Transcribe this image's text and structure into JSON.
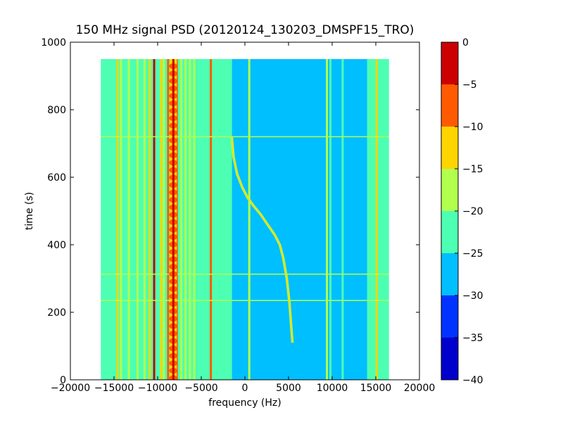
{
  "chart_data": {
    "type": "heatmap",
    "title": "150 MHz signal PSD (20120124_130203_DMSPF15_TRO)",
    "xlabel": "frequency (Hz)",
    "ylabel": "time (s)",
    "xlim": [
      -20000,
      20000
    ],
    "ylim": [
      0,
      1000
    ],
    "x_ticks": [
      -20000,
      -15000,
      -10000,
      -5000,
      0,
      5000,
      10000,
      15000,
      20000
    ],
    "x_tick_labels": [
      "−20000",
      "−15000",
      "−10000",
      "−5000",
      "0",
      "5000",
      "10000",
      "15000",
      "20000"
    ],
    "y_ticks": [
      0,
      200,
      400,
      600,
      800,
      1000
    ],
    "y_tick_labels": [
      "0",
      "200",
      "400",
      "600",
      "800",
      "1000"
    ],
    "data_extent": {
      "freq_min": -16500,
      "freq_max": 16500,
      "time_min": 0,
      "time_max": 950
    },
    "background_level": -28,
    "colorbar": {
      "levels": [
        -40,
        -35,
        -30,
        -25,
        -20,
        -15,
        -10,
        -5,
        0
      ],
      "tick_labels": [
        "−40",
        "−35",
        "−30",
        "−25",
        "−20",
        "−15",
        "−10",
        "−5",
        "0"
      ],
      "colors": [
        "#0000cc",
        "#0033ff",
        "#00bfff",
        "#4dffb2",
        "#b2ff4d",
        "#ffd500",
        "#ff5a00",
        "#cc0000"
      ]
    },
    "vertical_bands": [
      {
        "freq_from": -16500,
        "freq_to": -12500,
        "level": -23
      },
      {
        "freq_from": -12500,
        "freq_to": -5500,
        "level": -22
      },
      {
        "freq_from": -5500,
        "freq_to": -3500,
        "level": -23
      },
      {
        "freq_from": -3500,
        "freq_to": -1500,
        "level": -24
      },
      {
        "freq_from": 14000,
        "freq_to": 16500,
        "level": -23
      }
    ],
    "spectral_lines": [
      {
        "freq": -14600,
        "level": -12
      },
      {
        "freq": -14200,
        "level": -20
      },
      {
        "freq": -13300,
        "level": -18
      },
      {
        "freq": -12300,
        "level": -20
      },
      {
        "freq": -11500,
        "level": -16
      },
      {
        "freq": -10900,
        "level": -12
      },
      {
        "freq": -10400,
        "level": -3
      },
      {
        "freq": -9600,
        "level": -12
      },
      {
        "freq": -9300,
        "level": -16
      },
      {
        "freq": -8800,
        "level": -10
      },
      {
        "freq": -8300,
        "level": -6
      },
      {
        "freq": -7800,
        "level": -10
      },
      {
        "freq": -7300,
        "level": -16
      },
      {
        "freq": -6800,
        "level": -18
      },
      {
        "freq": -6300,
        "level": -18
      },
      {
        "freq": -5800,
        "level": -20
      },
      {
        "freq": -3900,
        "level": -8
      },
      {
        "freq": -3500,
        "level": -22
      },
      {
        "freq": -2600,
        "level": -22
      },
      {
        "freq": -1600,
        "level": -22
      },
      {
        "freq": 500,
        "level": -18
      },
      {
        "freq": 9400,
        "level": -18
      },
      {
        "freq": 9800,
        "level": -21
      },
      {
        "freq": 11200,
        "level": -21
      },
      {
        "freq": 14700,
        "level": -22
      },
      {
        "freq": 15100,
        "level": -14
      }
    ],
    "carrier": {
      "freq": -8200,
      "level": 0
    },
    "interference_rows": [
      {
        "time": 720,
        "level": -18
      },
      {
        "time": 313,
        "level": -18
      },
      {
        "time": 235,
        "level": -18
      }
    ],
    "doppler_trace": [
      {
        "freq": -1500,
        "time": 720
      },
      {
        "freq": -1300,
        "time": 660
      },
      {
        "freq": -900,
        "time": 610
      },
      {
        "freq": -300,
        "time": 570
      },
      {
        "freq": 300,
        "time": 540
      },
      {
        "freq": 1000,
        "time": 515
      },
      {
        "freq": 1800,
        "time": 490
      },
      {
        "freq": 2600,
        "time": 460
      },
      {
        "freq": 3400,
        "time": 430
      },
      {
        "freq": 4000,
        "time": 400
      },
      {
        "freq": 4400,
        "time": 360
      },
      {
        "freq": 4800,
        "time": 300
      },
      {
        "freq": 5100,
        "time": 230
      },
      {
        "freq": 5300,
        "time": 160
      },
      {
        "freq": 5450,
        "time": 110
      }
    ],
    "grid": false
  }
}
